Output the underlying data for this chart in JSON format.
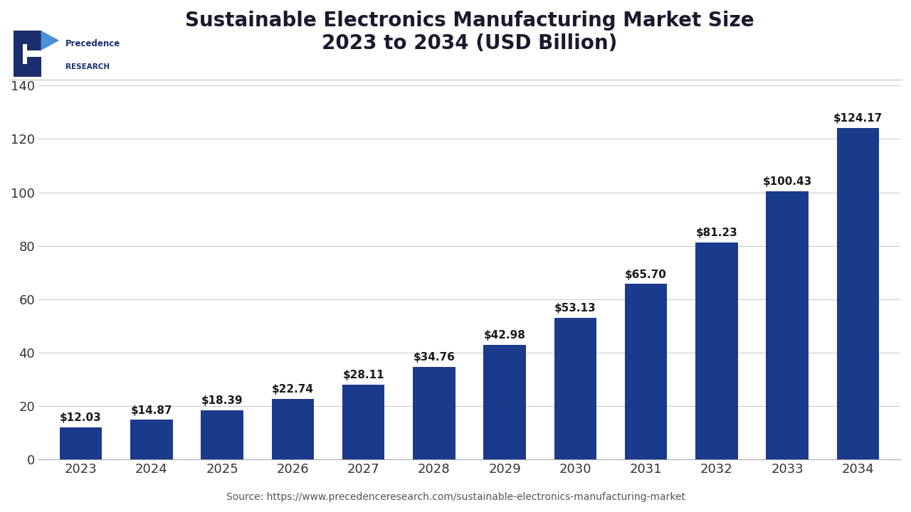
{
  "title": "Sustainable Electronics Manufacturing Market Size\n2023 to 2034 (USD Billion)",
  "years": [
    "2023",
    "2024",
    "2025",
    "2026",
    "2027",
    "2028",
    "2029",
    "2030",
    "2031",
    "2032",
    "2033",
    "2034"
  ],
  "values": [
    12.03,
    14.87,
    18.39,
    22.74,
    28.11,
    34.76,
    42.98,
    53.13,
    65.7,
    81.23,
    100.43,
    124.17
  ],
  "labels": [
    "$12.03",
    "$14.87",
    "$18.39",
    "$22.74",
    "$28.11",
    "$34.76",
    "$42.98",
    "$53.13",
    "$65.70",
    "$81.23",
    "$100.43",
    "$124.17"
  ],
  "bar_color": "#1a3a8c",
  "background_color": "#ffffff",
  "title_color": "#1a1a2e",
  "ylabel_ticks": [
    0,
    20,
    40,
    60,
    80,
    100,
    120,
    140
  ],
  "ylim": [
    0,
    148
  ],
  "source_text": "Source: https://www.precedenceresearch.com/sustainable-electronics-manufacturing-market",
  "logo_text_top": "Precedence",
  "logo_text_bottom": "RESEARCH",
  "dark_blue": "#1a2e6e",
  "light_blue": "#4a90d9",
  "title_fontsize": 20,
  "tick_fontsize": 13,
  "label_fontsize": 11,
  "source_fontsize": 10
}
